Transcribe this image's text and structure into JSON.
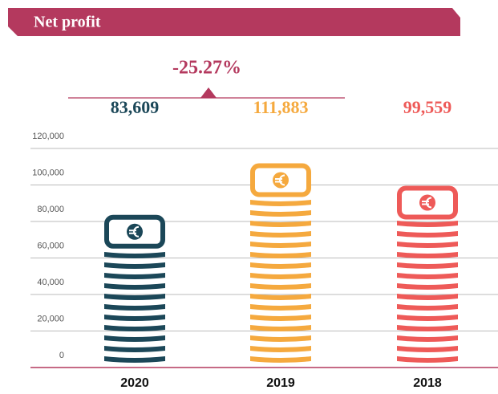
{
  "chart_data": {
    "type": "pictorial-bar",
    "title": "Net profit",
    "annotation": "-25.27%",
    "categories": [
      "2020",
      "2019",
      "2018"
    ],
    "values": [
      83609,
      111883,
      99559
    ],
    "value_labels": [
      "83,609",
      "111,883",
      "99,559"
    ],
    "colors": [
      "#1b4758",
      "#f5a93e",
      "#ee5a58"
    ],
    "ylim": [
      0,
      120000
    ],
    "yticks": [
      0,
      {
        "value": 20000,
        "label": "20,000"
      },
      {
        "value": 40000,
        "label": "40,000"
      },
      {
        "value": 60000,
        "label": "60,000"
      },
      {
        "value": 80000,
        "label": "80,000"
      },
      {
        "value": 100000,
        "label": "100,000"
      },
      {
        "value": 120000,
        "label": "120,000"
      }
    ],
    "grid": true
  }
}
